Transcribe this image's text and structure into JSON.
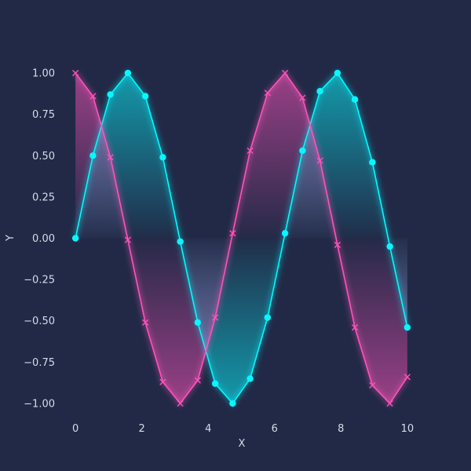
{
  "chart_data": {
    "type": "line",
    "title": "",
    "xlabel": "X",
    "ylabel": "Y",
    "xlim": [
      -0.5,
      10.5
    ],
    "ylim": [
      -1.1,
      1.1
    ],
    "x_ticks": [
      0,
      2,
      4,
      6,
      8,
      10
    ],
    "x_tick_labels": [
      "0",
      "2",
      "4",
      "6",
      "8",
      "10"
    ],
    "y_ticks": [
      1.0,
      0.75,
      0.5,
      0.25,
      0.0,
      -0.25,
      -0.5,
      -0.75,
      -1.0
    ],
    "y_tick_labels": [
      "1.00",
      "0.75",
      "0.50",
      "0.25",
      "0.00",
      "−0.25",
      "−0.50",
      "−0.75",
      "−1.00"
    ],
    "grid": false,
    "legend": false,
    "x": [
      0,
      0.526,
      1.053,
      1.579,
      2.105,
      2.632,
      3.158,
      3.684,
      4.211,
      4.737,
      5.263,
      5.789,
      6.316,
      6.842,
      7.368,
      7.895,
      8.421,
      8.947,
      9.474,
      10.0
    ],
    "series": [
      {
        "color": "#08F7FE",
        "marker": "circle",
        "values": [
          0.0,
          0.5,
          0.87,
          1.0,
          0.86,
          0.49,
          -0.02,
          -0.51,
          -0.88,
          -1.0,
          -0.85,
          -0.48,
          0.03,
          0.53,
          0.89,
          1.0,
          0.84,
          0.46,
          -0.05,
          -0.54
        ]
      },
      {
        "color": "#FE53BB",
        "marker": "x",
        "values": [
          1.0,
          0.86,
          0.49,
          -0.01,
          -0.51,
          -0.87,
          -1.0,
          -0.86,
          -0.48,
          0.03,
          0.53,
          0.88,
          1.0,
          0.85,
          0.47,
          -0.04,
          -0.54,
          -0.89,
          -1.0,
          -0.84
        ]
      }
    ]
  }
}
